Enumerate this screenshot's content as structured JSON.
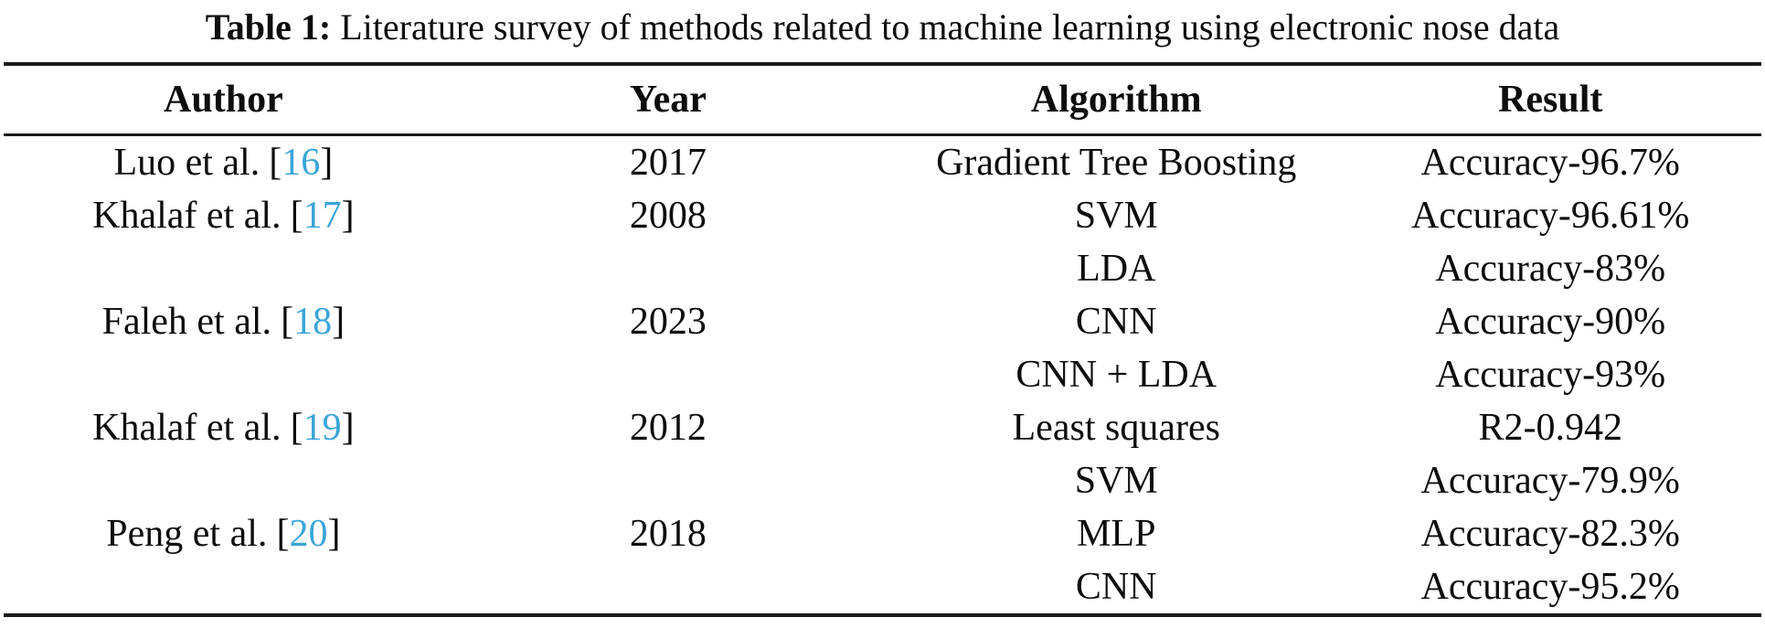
{
  "caption": {
    "label": "Table 1:",
    "text": " Literature survey of methods related to machine learning using electronic nose data"
  },
  "table": {
    "headers": {
      "author": "Author",
      "year": "Year",
      "algorithm": "Algorithm",
      "result": "Result"
    },
    "rows": [
      {
        "author": "Luo et al.",
        "cite_open": "[",
        "ref": "16",
        "cite_close": "]",
        "year": "2017",
        "algorithm": "Gradient Tree Boosting",
        "result": "Accuracy-96.7%"
      },
      {
        "author": "Khalaf et al.",
        "cite_open": "[",
        "ref": "17",
        "cite_close": "]",
        "year": "2008",
        "algorithm": "SVM",
        "result": "Accuracy-96.61%"
      },
      {
        "author": "",
        "year": "",
        "algorithm": "LDA",
        "result": "Accuracy-83%"
      },
      {
        "author": "Faleh et al.",
        "cite_open": "[",
        "ref": "18",
        "cite_close": "]",
        "year": "2023",
        "algorithm": "CNN",
        "result": "Accuracy-90%"
      },
      {
        "author": "",
        "year": "",
        "algorithm": "CNN + LDA",
        "result": "Accuracy-93%"
      },
      {
        "author": "Khalaf et al.",
        "cite_open": "[",
        "ref": "19",
        "cite_close": "]",
        "year": "2012",
        "algorithm": "Least squares",
        "result": "R2-0.942"
      },
      {
        "author": "",
        "year": "",
        "algorithm": "SVM",
        "result": "Accuracy-79.9%"
      },
      {
        "author": "Peng et al.",
        "cite_open": "[",
        "ref": "20",
        "cite_close": "]",
        "year": "2018",
        "algorithm": "MLP",
        "result": "Accuracy-82.3%"
      },
      {
        "author": "",
        "year": "",
        "algorithm": "CNN",
        "result": "Accuracy-95.2%"
      }
    ]
  },
  "colors": {
    "citation_blue": "#3aa4d9",
    "text": "#0d0d0d",
    "rule": "#1a1a1a"
  }
}
